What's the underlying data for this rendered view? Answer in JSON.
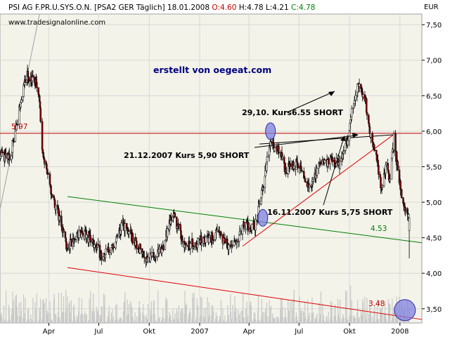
{
  "header": {
    "symbol": "PSI AG F.PR.U.SYS.O.N.",
    "exchange": "[PSA2 GER",
    "period": "Täglich]",
    "date": "18.01.2008",
    "open_label": "O:4.60",
    "high_label": "H:4.78",
    "low_label": "L:4.21",
    "close_label": "C:4.78",
    "website": "www.tradesignalonline.com"
  },
  "colors": {
    "background": "#ffffff",
    "plot_background": "#f3f3ea",
    "gridline": "#d8d8d8",
    "up_candle": "#ffffff",
    "down_candle": "#8b0000",
    "candle_outline": "#000000",
    "trendline_green": "#008000",
    "trendline_red": "#dd0000",
    "horizontal_line": "#c00000",
    "marker_fill": "#8080e0",
    "volume_bar": "#c8c8c8",
    "watermark_text": "#000080",
    "label_red": "#c00000",
    "label_green": "#008000"
  },
  "annotations": {
    "watermark": "erstellt von oegeat.com",
    "signal_1": "29,10. Kurs6.55 SHORT",
    "signal_2": "21.12.2007 Kurs 5,90  SHORT",
    "signal_3": "16.11.2007 Kurs 5,75  SHORT",
    "level_597": "5.97",
    "level_453": "4.53",
    "level_348": "3.48"
  },
  "chart_data": {
    "type": "candlestick",
    "currency_label": "EUR",
    "ylim": [
      3.3,
      7.65
    ],
    "y_ticks": [
      "7,50",
      "7,00",
      "6,50",
      "6,00",
      "5,50",
      "5,00",
      "4,50",
      "4,00",
      "3,50"
    ],
    "x_ticks": [
      "Apr",
      "Jul",
      "Okt",
      "2007",
      "Apr",
      "Jul",
      "Okt",
      "2008"
    ],
    "x_start": "2006-01-02",
    "x_end": "2008-02-10",
    "last_bar": {
      "date": "2008-01-18",
      "open": 4.6,
      "high": 4.78,
      "low": 4.21,
      "close": 4.78
    },
    "price_path": [
      [
        "2006-01-02",
        5.7
      ],
      [
        "2006-01-20",
        5.6
      ],
      [
        "2006-02-06",
        6.3
      ],
      [
        "2006-02-20",
        6.8
      ],
      [
        "2006-03-06",
        6.7
      ],
      [
        "2006-03-13",
        6.6
      ],
      [
        "2006-03-20",
        5.8
      ],
      [
        "2006-04-03",
        5.2
      ],
      [
        "2006-04-24",
        4.7
      ],
      [
        "2006-05-05",
        4.35
      ],
      [
        "2006-05-25",
        4.55
      ],
      [
        "2006-06-15",
        4.5
      ],
      [
        "2006-07-06",
        4.25
      ],
      [
        "2006-07-27",
        4.35
      ],
      [
        "2006-08-14",
        4.7
      ],
      [
        "2006-09-04",
        4.45
      ],
      [
        "2006-09-28",
        4.2
      ],
      [
        "2006-10-23",
        4.3
      ],
      [
        "2006-11-13",
        4.85
      ],
      [
        "2006-12-05",
        4.4
      ],
      [
        "2007-01-05",
        4.45
      ],
      [
        "2007-02-05",
        4.55
      ],
      [
        "2007-03-01",
        4.35
      ],
      [
        "2007-03-22",
        4.65
      ],
      [
        "2007-04-12",
        4.65
      ],
      [
        "2007-04-26",
        5.2
      ],
      [
        "2007-05-10",
        5.85
      ],
      [
        "2007-05-24",
        5.75
      ],
      [
        "2007-06-07",
        5.45
      ],
      [
        "2007-06-28",
        5.55
      ],
      [
        "2007-07-19",
        5.2
      ],
      [
        "2007-08-02",
        5.45
      ],
      [
        "2007-08-23",
        5.6
      ],
      [
        "2007-09-13",
        5.55
      ],
      [
        "2007-09-27",
        5.85
      ],
      [
        "2007-10-05",
        6.25
      ],
      [
        "2007-10-18",
        6.65
      ],
      [
        "2007-10-29",
        6.5
      ],
      [
        "2007-11-08",
        5.95
      ],
      [
        "2007-11-16",
        5.75
      ],
      [
        "2007-11-28",
        5.2
      ],
      [
        "2007-12-07",
        5.55
      ],
      [
        "2007-12-14",
        5.3
      ],
      [
        "2007-12-21",
        5.9
      ],
      [
        "2008-01-04",
        5.05
      ],
      [
        "2008-01-10",
        4.9
      ],
      [
        "2008-01-18",
        4.78
      ]
    ],
    "horizontal_line": 5.97,
    "trendlines": [
      {
        "color": "green",
        "from": [
          "2006-05-05",
          5.08
        ],
        "to": [
          "2008-02-10",
          4.43
        ]
      },
      {
        "color": "red",
        "from": [
          "2006-05-05",
          4.08
        ],
        "to": [
          "2008-02-10",
          3.35
        ]
      },
      {
        "color": "red",
        "from": [
          "2007-03-20",
          4.38
        ],
        "to": [
          "2007-12-20",
          5.95
        ]
      },
      {
        "color": "black",
        "from": [
          "2007-04-20",
          5.82
        ],
        "to": [
          "2007-12-20",
          5.95
        ]
      },
      {
        "color": "gray",
        "from": [
          "2006-01-02",
          4.9
        ],
        "to": [
          "2006-03-15",
          7.65
        ]
      }
    ],
    "markers": [
      {
        "date": "2007-05-10",
        "price": 6.0
      },
      {
        "date": "2007-04-26",
        "price": 4.78
      },
      {
        "date": "2008-01-10",
        "price": 3.48
      }
    ]
  }
}
